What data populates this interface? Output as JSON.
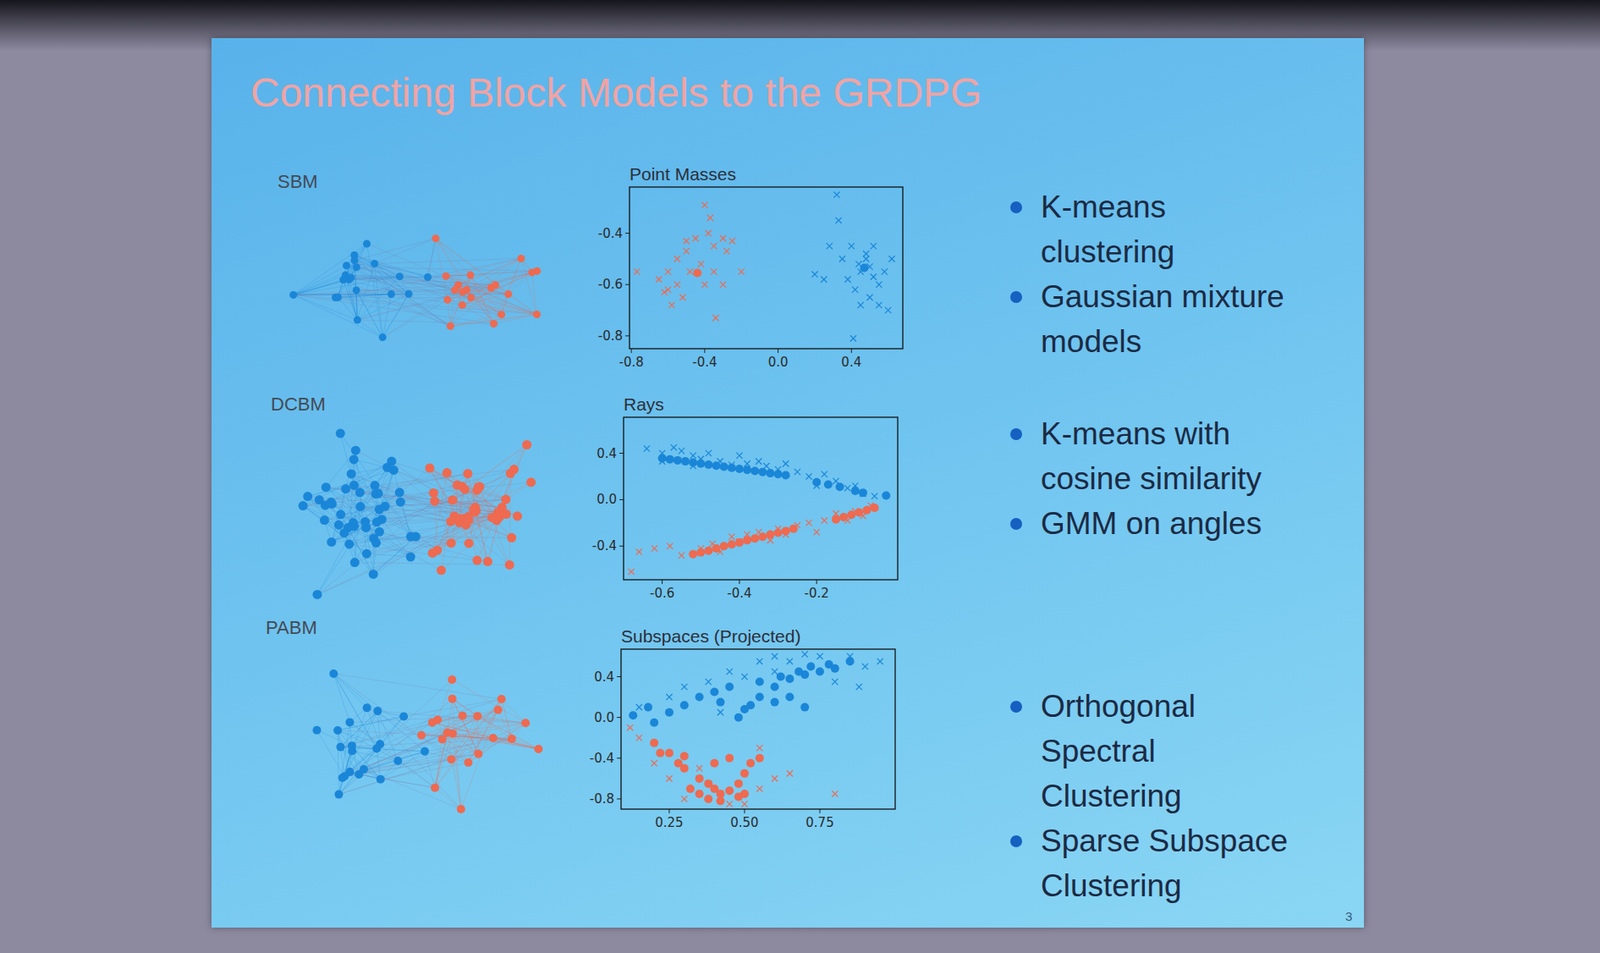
{
  "title": "Connecting Block Models to the GRDPG",
  "page_number": 3,
  "panels": [
    {
      "label": "SBM",
      "bullets": [
        "K-means clustering",
        "Gaussian mixture models"
      ]
    },
    {
      "label": "DCBM",
      "bullets": [
        "K-means with cosine similarity",
        "GMM on angles"
      ]
    },
    {
      "label": "PABM",
      "bullets": [
        "Orthogonal Spectral Clustering",
        "Sparse Subspace Clustering"
      ]
    }
  ],
  "chart_data": [
    {
      "type": "scatter",
      "title": "Point Masses",
      "xlim": [
        -0.81,
        0.68
      ],
      "ylim": [
        -0.85,
        -0.22
      ],
      "xticks": [
        -0.8,
        -0.4,
        {
          "value": 0,
          "label": "0.0"
        },
        0.4
      ],
      "yticks": [
        -0.4,
        -0.6,
        -0.8
      ],
      "series": [
        {
          "color": "#ee6a50",
          "marker": "x",
          "x": [
            -0.77,
            -0.65,
            -0.6,
            -0.55,
            -0.5,
            -0.45,
            -0.38,
            -0.35,
            -0.3,
            -0.28,
            -0.25,
            -0.42,
            -0.48,
            -0.55,
            -0.6,
            -0.52,
            -0.58,
            -0.62,
            -0.4,
            -0.35,
            -0.2,
            -0.34,
            -0.3,
            -0.5,
            -0.4,
            -0.37
          ],
          "values": [
            -0.55,
            -0.58,
            -0.55,
            -0.5,
            -0.47,
            -0.42,
            -0.4,
            -0.45,
            -0.42,
            -0.47,
            -0.43,
            -0.52,
            -0.55,
            -0.6,
            -0.62,
            -0.65,
            -0.68,
            -0.63,
            -0.6,
            -0.55,
            -0.55,
            -0.73,
            -0.6,
            -0.43,
            -0.29,
            -0.34
          ]
        },
        {
          "color": "#ee6a50",
          "marker": "o",
          "x": [
            -0.44
          ],
          "values": [
            -0.555
          ]
        },
        {
          "color": "#1a86d8",
          "marker": "x",
          "x": [
            0.32,
            0.33,
            0.28,
            0.4,
            0.48,
            0.45,
            0.5,
            0.52,
            0.55,
            0.42,
            0.38,
            0.35,
            0.2,
            0.25,
            0.5,
            0.55,
            0.6,
            0.45,
            0.58,
            0.62,
            0.41,
            0.48,
            0.44,
            0.52
          ],
          "values": [
            -0.25,
            -0.35,
            -0.45,
            -0.45,
            -0.5,
            -0.55,
            -0.53,
            -0.57,
            -0.6,
            -0.62,
            -0.58,
            -0.5,
            -0.56,
            -0.58,
            -0.65,
            -0.68,
            -0.7,
            -0.68,
            -0.55,
            -0.5,
            -0.81,
            -0.48,
            -0.52,
            -0.45
          ]
        },
        {
          "color": "#1a86d8",
          "marker": "o",
          "x": [
            0.47
          ],
          "values": [
            -0.535
          ]
        }
      ]
    },
    {
      "type": "scatter",
      "title": "Rays",
      "xlim": [
        -0.7,
        0.01
      ],
      "ylim": [
        -0.69,
        0.71
      ],
      "xticks": [
        -0.6,
        -0.4,
        -0.2
      ],
      "yticks": [
        0.4,
        {
          "value": 0,
          "label": "0.0"
        },
        -0.4
      ],
      "series": [
        {
          "color": "#ee6a50",
          "marker": "x",
          "x": [
            -0.68,
            -0.62,
            -0.58,
            -0.55,
            -0.5,
            -0.47,
            -0.45,
            -0.42,
            -0.4,
            -0.38,
            -0.35,
            -0.32,
            -0.3,
            -0.28,
            -0.25,
            -0.22,
            -0.2,
            -0.18,
            -0.15,
            -0.12,
            -0.1,
            -0.08,
            -0.06,
            -0.66
          ],
          "values": [
            -0.62,
            -0.42,
            -0.4,
            -0.48,
            -0.42,
            -0.38,
            -0.45,
            -0.32,
            -0.36,
            -0.3,
            -0.28,
            -0.35,
            -0.25,
            -0.3,
            -0.22,
            -0.2,
            -0.28,
            -0.18,
            -0.12,
            -0.18,
            -0.1,
            -0.14,
            -0.05,
            -0.45
          ]
        },
        {
          "color": "#ee6a50",
          "marker": "o",
          "x": [
            -0.52,
            -0.5,
            -0.48,
            -0.46,
            -0.44,
            -0.42,
            -0.4,
            -0.38,
            -0.36,
            -0.34,
            -0.32,
            -0.3,
            -0.28,
            -0.26,
            -0.15,
            -0.13,
            -0.11,
            -0.09,
            -0.07,
            -0.05
          ],
          "values": [
            -0.47,
            -0.455,
            -0.44,
            -0.42,
            -0.4,
            -0.385,
            -0.37,
            -0.35,
            -0.335,
            -0.32,
            -0.3,
            -0.285,
            -0.27,
            -0.25,
            -0.17,
            -0.15,
            -0.13,
            -0.11,
            -0.09,
            -0.07
          ]
        },
        {
          "color": "#1a86d8",
          "marker": "x",
          "x": [
            -0.64,
            -0.6,
            -0.57,
            -0.55,
            -0.52,
            -0.5,
            -0.48,
            -0.45,
            -0.42,
            -0.4,
            -0.38,
            -0.35,
            -0.33,
            -0.3,
            -0.28,
            -0.25,
            -0.22,
            -0.2,
            -0.18,
            -0.15,
            -0.12,
            -0.1,
            -0.08,
            -0.05,
            -0.6,
            -0.52
          ],
          "values": [
            0.44,
            0.4,
            0.45,
            0.42,
            0.38,
            0.35,
            0.4,
            0.33,
            0.3,
            0.38,
            0.31,
            0.33,
            0.29,
            0.26,
            0.31,
            0.24,
            0.2,
            0.12,
            0.22,
            0.16,
            0.1,
            0.12,
            0.05,
            0.03,
            0.33,
            0.29
          ]
        },
        {
          "color": "#1a86d8",
          "marker": "o",
          "x": [
            -0.6,
            -0.58,
            -0.56,
            -0.54,
            -0.52,
            -0.5,
            -0.48,
            -0.46,
            -0.44,
            -0.42,
            -0.4,
            -0.38,
            -0.36,
            -0.34,
            -0.32,
            -0.3,
            -0.28,
            -0.2,
            -0.17,
            -0.14,
            -0.1,
            -0.08,
            -0.02
          ],
          "values": [
            0.357,
            0.348,
            0.339,
            0.33,
            0.32,
            0.311,
            0.302,
            0.293,
            0.284,
            0.274,
            0.265,
            0.256,
            0.247,
            0.238,
            0.228,
            0.219,
            0.21,
            0.15,
            0.13,
            0.11,
            0.075,
            0.06,
            0.035
          ]
        }
      ]
    },
    {
      "type": "scatter",
      "title": "Subspaces (Projected)",
      "xlim": [
        0.09,
        1.0
      ],
      "ylim": [
        -0.9,
        0.67
      ],
      "xticks": [
        0.25,
        {
          "value": 0.5,
          "label": "0.50"
        },
        0.75
      ],
      "yticks": [
        0.4,
        {
          "value": 0,
          "label": "0.0"
        },
        -0.4,
        -0.8
      ],
      "series": [
        {
          "color": "#ee6a50",
          "marker": "x",
          "x": [
            0.12,
            0.2,
            0.25,
            0.3,
            0.35,
            0.45,
            0.5,
            0.55,
            0.6,
            0.65,
            0.55,
            0.8,
            0.15
          ],
          "values": [
            -0.1,
            -0.45,
            -0.6,
            -0.8,
            -0.5,
            -0.85,
            -0.85,
            -0.7,
            -0.6,
            -0.55,
            -0.3,
            -0.75,
            -0.2
          ]
        },
        {
          "color": "#ee6a50",
          "marker": "o",
          "x": [
            0.2,
            0.25,
            0.28,
            0.3,
            0.35,
            0.38,
            0.4,
            0.42,
            0.45,
            0.48,
            0.5,
            0.52,
            0.55,
            0.35,
            0.38,
            0.42,
            0.48,
            0.32,
            0.45,
            0.4,
            0.3,
            0.5,
            0.22
          ],
          "values": [
            -0.25,
            -0.35,
            -0.45,
            -0.5,
            -0.6,
            -0.65,
            -0.7,
            -0.75,
            -0.72,
            -0.65,
            -0.55,
            -0.45,
            -0.4,
            -0.75,
            -0.8,
            -0.82,
            -0.78,
            -0.7,
            -0.4,
            -0.45,
            -0.38,
            -0.75,
            -0.35
          ]
        },
        {
          "color": "#1a86d8",
          "marker": "x",
          "x": [
            0.15,
            0.3,
            0.38,
            0.45,
            0.5,
            0.55,
            0.6,
            0.65,
            0.7,
            0.75,
            0.8,
            0.85,
            0.9,
            0.95,
            0.88,
            0.6,
            0.42,
            0.25
          ],
          "values": [
            0.1,
            0.3,
            0.35,
            0.45,
            0.4,
            0.55,
            0.6,
            0.55,
            0.62,
            0.6,
            0.35,
            0.6,
            0.5,
            0.55,
            0.3,
            0.45,
            0.05,
            0.2
          ]
        },
        {
          "color": "#1a86d8",
          "marker": "o",
          "x": [
            0.13,
            0.18,
            0.2,
            0.25,
            0.3,
            0.35,
            0.4,
            0.45,
            0.42,
            0.48,
            0.5,
            0.52,
            0.55,
            0.55,
            0.6,
            0.62,
            0.65,
            0.68,
            0.7,
            0.72,
            0.75,
            0.78,
            0.8,
            0.85,
            0.6,
            0.65,
            0.7
          ],
          "values": [
            0.02,
            0.1,
            -0.05,
            0.05,
            0.12,
            0.2,
            0.25,
            0.3,
            0.15,
            0.0,
            0.08,
            0.12,
            0.2,
            0.35,
            0.3,
            0.4,
            0.38,
            0.45,
            0.42,
            0.5,
            0.45,
            0.52,
            0.48,
            0.55,
            0.15,
            0.2,
            0.1
          ]
        }
      ]
    }
  ]
}
